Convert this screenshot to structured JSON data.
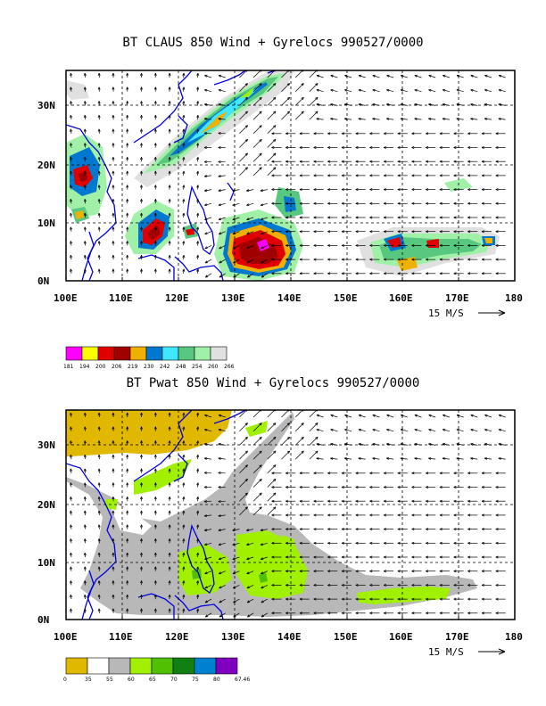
{
  "panels": [
    {
      "title": "BT CLAUS 850 Wind + Gyrelocs 990527/0000",
      "y_ticks": [
        "0N",
        "10N",
        "20N",
        "30N"
      ],
      "x_ticks": [
        "100E",
        "110E",
        "120E",
        "130E",
        "140E",
        "150E",
        "160E",
        "170E",
        "180"
      ],
      "vector_scale_label": "15 M/S",
      "legend_values": [
        "181",
        "194",
        "200",
        "206",
        "219",
        "230",
        "242",
        "248",
        "254",
        "260",
        "266"
      ],
      "legend_colors": [
        "#ff00ff",
        "#ffff00",
        "#e00000",
        "#a00000",
        "#f0b000",
        "#0078d0",
        "#40e8ff",
        "#58c880",
        "#a0f0a8",
        "#e0e0e0"
      ]
    },
    {
      "title": "BT Pwat 850 Wind + Gyrelocs 990527/0000",
      "y_ticks": [
        "0N",
        "10N",
        "20N",
        "30N"
      ],
      "x_ticks": [
        "100E",
        "110E",
        "120E",
        "130E",
        "140E",
        "150E",
        "160E",
        "170E",
        "180"
      ],
      "vector_scale_label": "15 M/S",
      "legend_values": [
        "0",
        "35",
        "55",
        "60",
        "65",
        "70",
        "75",
        "80",
        "67.46"
      ],
      "legend_colors": [
        "#e0b800",
        "#ffffff",
        "#b8b8b8",
        "#a0f000",
        "#50c000",
        "#108010",
        "#0080d0",
        "#8000c0"
      ]
    }
  ]
}
